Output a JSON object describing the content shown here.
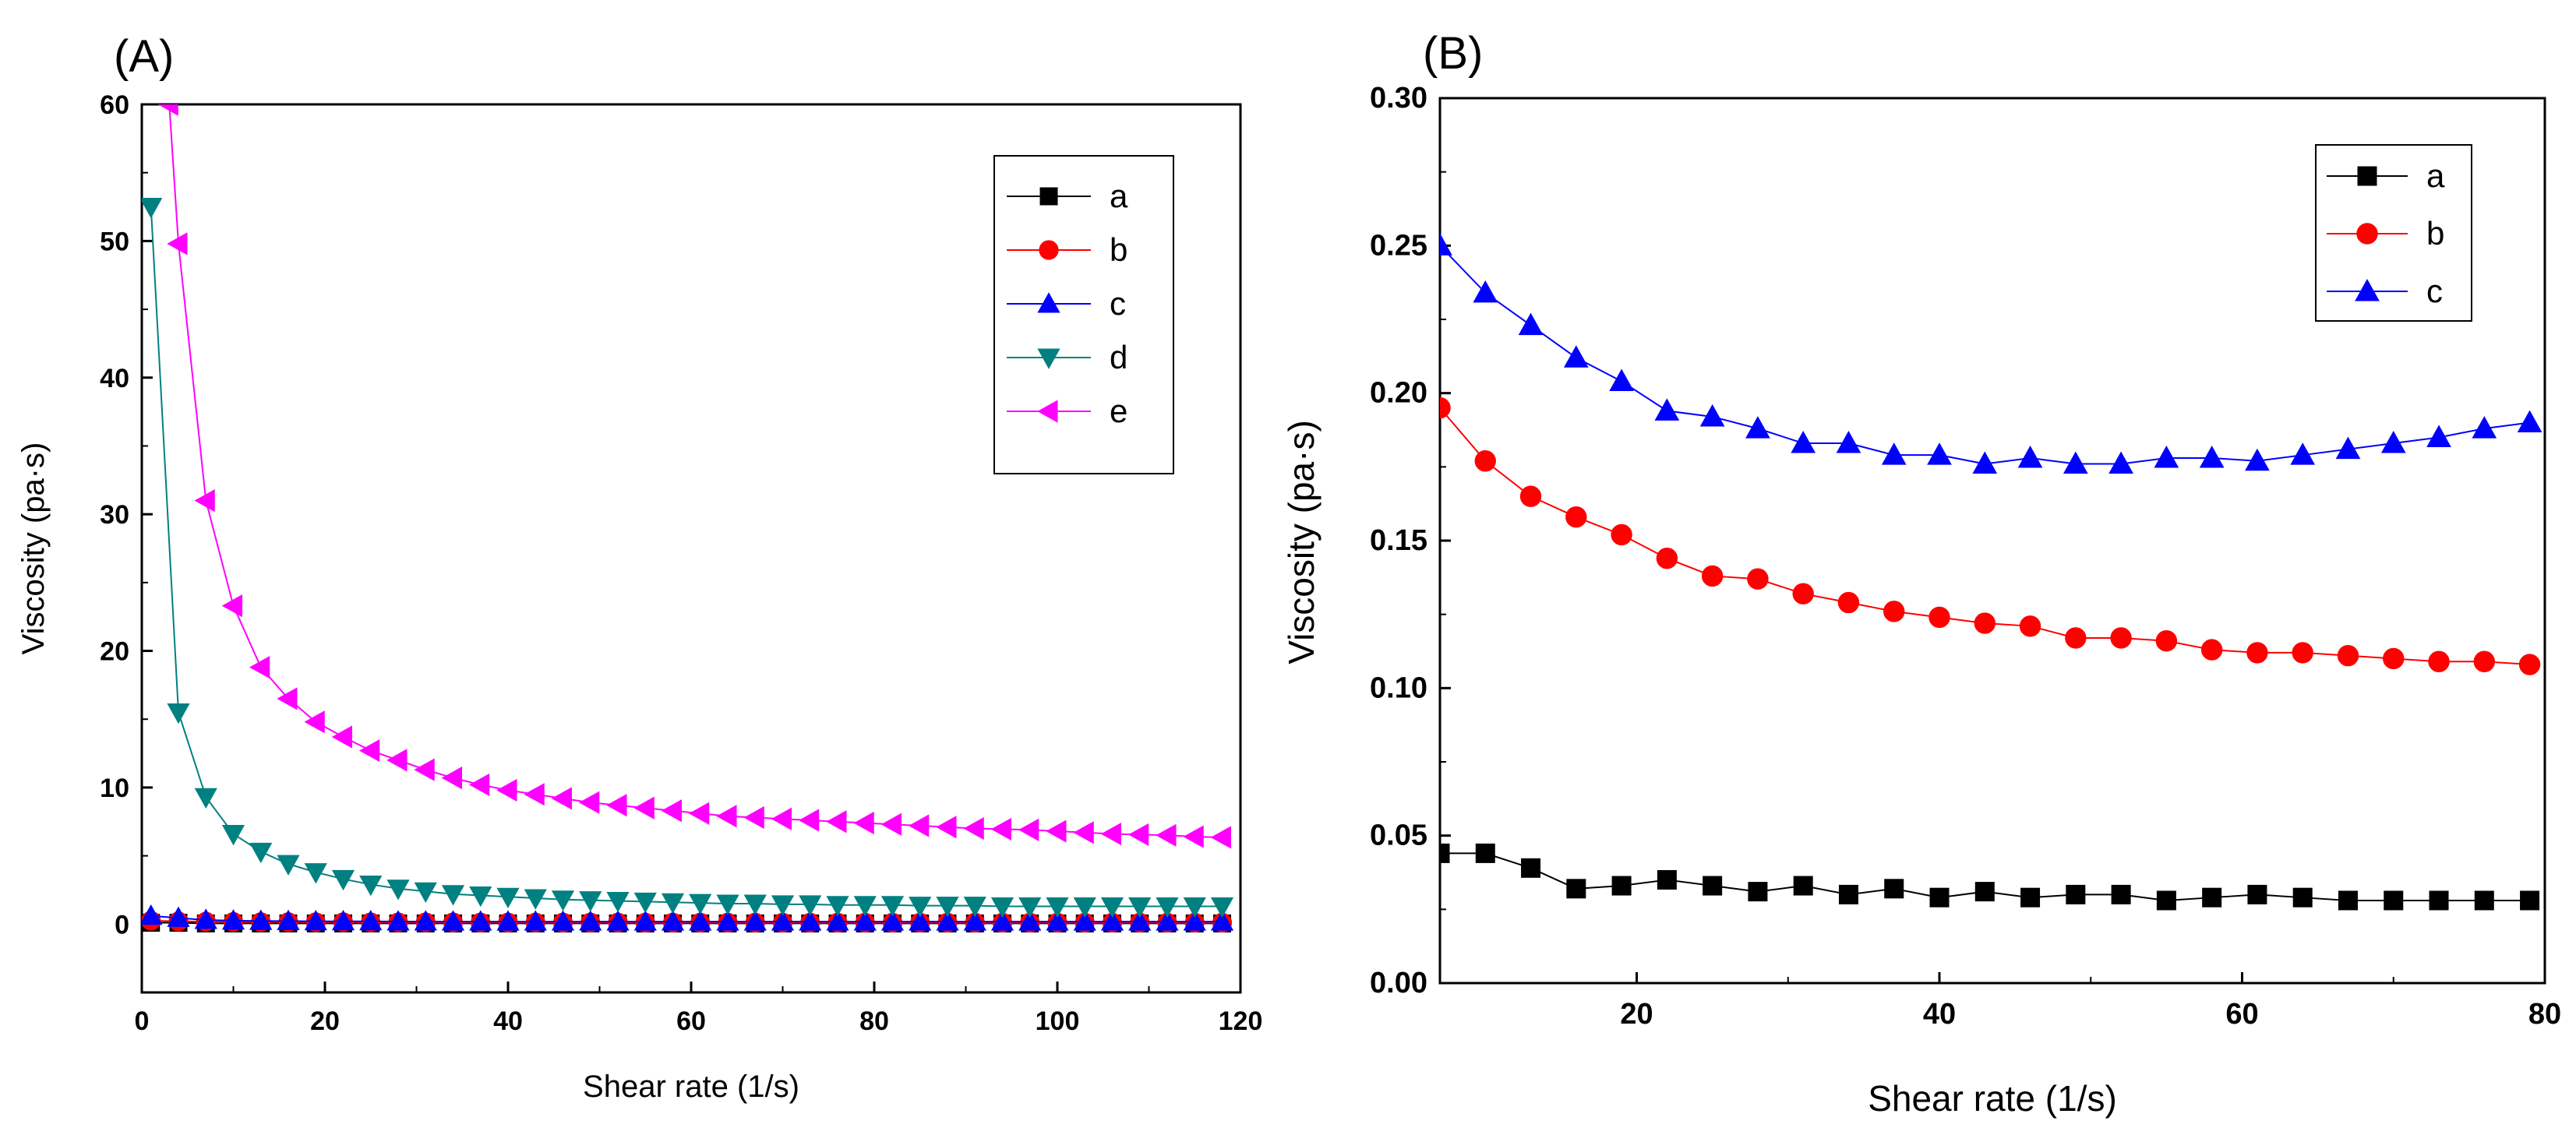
{
  "chart_data": [
    {
      "type": "line",
      "panel_label": "(A)",
      "xlabel": "Shear rate (1/s)",
      "ylabel": "Viscosity (pa·s)",
      "xlim": [
        0,
        120
      ],
      "ylim": [
        -5,
        60
      ],
      "xticks": [
        0,
        20,
        40,
        60,
        80,
        100,
        120
      ],
      "yticks": [
        0,
        10,
        20,
        30,
        40,
        50,
        60
      ],
      "legend_position": "top-right",
      "series": [
        {
          "name": "a",
          "color": "#000000",
          "marker": "square",
          "x": [
            1,
            4,
            7,
            10,
            13,
            16,
            19,
            22,
            25,
            28,
            31,
            34,
            37,
            40,
            43,
            46,
            49,
            52,
            55,
            58,
            61,
            64,
            67,
            70,
            73,
            76,
            79,
            82,
            85,
            88,
            91,
            94,
            97,
            100,
            103,
            106,
            109,
            112,
            115,
            118
          ],
          "y": [
            0.1,
            0.1,
            0.05,
            0.05,
            0.05,
            0.05,
            0.05,
            0.05,
            0.05,
            0.05,
            0.05,
            0.05,
            0.05,
            0.05,
            0.05,
            0.05,
            0.05,
            0.05,
            0.05,
            0.05,
            0.05,
            0.05,
            0.05,
            0.05,
            0.05,
            0.05,
            0.05,
            0.05,
            0.05,
            0.05,
            0.05,
            0.05,
            0.05,
            0.05,
            0.05,
            0.05,
            0.05,
            0.05,
            0.05,
            0.05
          ]
        },
        {
          "name": "b",
          "color": "#ff0000",
          "marker": "circle",
          "x": [
            1,
            4,
            7,
            10,
            13,
            16,
            19,
            22,
            25,
            28,
            31,
            34,
            37,
            40,
            43,
            46,
            49,
            52,
            55,
            58,
            61,
            64,
            67,
            70,
            73,
            76,
            79,
            82,
            85,
            88,
            91,
            94,
            97,
            100,
            103,
            106,
            109,
            112,
            115,
            118
          ],
          "y": [
            0.25,
            0.2,
            0.18,
            0.16,
            0.15,
            0.15,
            0.14,
            0.14,
            0.13,
            0.13,
            0.13,
            0.13,
            0.12,
            0.12,
            0.12,
            0.12,
            0.12,
            0.12,
            0.11,
            0.11,
            0.11,
            0.11,
            0.11,
            0.11,
            0.11,
            0.11,
            0.11,
            0.11,
            0.11,
            0.11,
            0.11,
            0.11,
            0.11,
            0.11,
            0.11,
            0.11,
            0.11,
            0.11,
            0.11,
            0.11
          ]
        },
        {
          "name": "c",
          "color": "#0000ff",
          "marker": "triangle-up",
          "x": [
            1,
            4,
            7,
            10,
            13,
            16,
            19,
            22,
            25,
            28,
            31,
            34,
            37,
            40,
            43,
            46,
            49,
            52,
            55,
            58,
            61,
            64,
            67,
            70,
            73,
            76,
            79,
            82,
            85,
            88,
            91,
            94,
            97,
            100,
            103,
            106,
            109,
            112,
            115,
            118
          ],
          "y": [
            0.6,
            0.45,
            0.3,
            0.25,
            0.23,
            0.22,
            0.2,
            0.2,
            0.2,
            0.19,
            0.19,
            0.18,
            0.18,
            0.18,
            0.18,
            0.18,
            0.18,
            0.18,
            0.18,
            0.18,
            0.18,
            0.18,
            0.18,
            0.18,
            0.18,
            0.18,
            0.18,
            0.18,
            0.18,
            0.18,
            0.18,
            0.18,
            0.18,
            0.18,
            0.18,
            0.18,
            0.18,
            0.18,
            0.18,
            0.18
          ]
        },
        {
          "name": "d",
          "color": "#008080",
          "marker": "triangle-down",
          "x": [
            1,
            4,
            7,
            10,
            13,
            16,
            19,
            22,
            25,
            28,
            31,
            34,
            37,
            40,
            43,
            46,
            49,
            52,
            55,
            58,
            61,
            64,
            67,
            70,
            73,
            76,
            79,
            82,
            85,
            88,
            91,
            94,
            97,
            100,
            103,
            106,
            109,
            112,
            115,
            118
          ],
          "y": [
            52.5,
            15.5,
            9.3,
            6.6,
            5.3,
            4.4,
            3.8,
            3.3,
            2.9,
            2.6,
            2.4,
            2.2,
            2.1,
            2.0,
            1.9,
            1.8,
            1.75,
            1.7,
            1.65,
            1.6,
            1.55,
            1.5,
            1.5,
            1.45,
            1.45,
            1.4,
            1.4,
            1.4,
            1.35,
            1.35,
            1.35,
            1.3,
            1.3,
            1.3,
            1.3,
            1.3,
            1.3,
            1.3,
            1.3,
            1.3
          ]
        },
        {
          "name": "e",
          "color": "#ff00ff",
          "marker": "triangle-left",
          "x": [
            3,
            4,
            7,
            10,
            13,
            16,
            19,
            22,
            25,
            28,
            31,
            34,
            37,
            40,
            43,
            46,
            49,
            52,
            55,
            58,
            61,
            64,
            67,
            70,
            73,
            76,
            79,
            82,
            85,
            88,
            91,
            94,
            97,
            100,
            103,
            106,
            109,
            112,
            115,
            118
          ],
          "y": [
            60,
            49.8,
            31.0,
            23.3,
            18.8,
            16.5,
            14.8,
            13.7,
            12.7,
            12.0,
            11.3,
            10.7,
            10.2,
            9.8,
            9.5,
            9.2,
            8.9,
            8.7,
            8.5,
            8.3,
            8.1,
            7.9,
            7.8,
            7.7,
            7.6,
            7.5,
            7.4,
            7.3,
            7.2,
            7.1,
            7.0,
            6.95,
            6.9,
            6.8,
            6.7,
            6.6,
            6.55,
            6.5,
            6.4,
            6.35
          ]
        }
      ]
    },
    {
      "type": "line",
      "panel_label": "(B)",
      "xlabel": "Shear rate (1/s)",
      "ylabel": "Viscosity (pa·s)",
      "xlim": [
        7,
        80
      ],
      "ylim": [
        0,
        0.3
      ],
      "xticks": [
        20,
        40,
        60,
        80
      ],
      "yticks": [
        "0.00",
        "0.05",
        "0.10",
        "0.15",
        "0.20",
        "0.25",
        "0.30"
      ],
      "legend_position": "top-right",
      "series": [
        {
          "name": "a",
          "color": "#000000",
          "marker": "square",
          "x": [
            7,
            10,
            13,
            16,
            19,
            22,
            25,
            28,
            31,
            34,
            37,
            40,
            43,
            46,
            49,
            52,
            55,
            58,
            61,
            64,
            67,
            70,
            73,
            76,
            79
          ],
          "y": [
            0.044,
            0.044,
            0.039,
            0.032,
            0.033,
            0.035,
            0.033,
            0.031,
            0.033,
            0.03,
            0.032,
            0.029,
            0.031,
            0.029,
            0.03,
            0.03,
            0.028,
            0.029,
            0.03,
            0.029,
            0.028,
            0.028,
            0.028,
            0.028,
            0.028
          ]
        },
        {
          "name": "b",
          "color": "#ff0000",
          "marker": "circle",
          "x": [
            7,
            10,
            13,
            16,
            19,
            22,
            25,
            28,
            31,
            34,
            37,
            40,
            43,
            46,
            49,
            52,
            55,
            58,
            61,
            64,
            67,
            70,
            73,
            76,
            79
          ],
          "y": [
            0.195,
            0.177,
            0.165,
            0.158,
            0.152,
            0.144,
            0.138,
            0.137,
            0.132,
            0.129,
            0.126,
            0.124,
            0.122,
            0.121,
            0.117,
            0.117,
            0.116,
            0.113,
            0.112,
            0.112,
            0.111,
            0.11,
            0.109,
            0.109,
            0.108
          ]
        },
        {
          "name": "c",
          "color": "#0000ff",
          "marker": "triangle-up",
          "x": [
            7,
            10,
            13,
            16,
            19,
            22,
            25,
            28,
            31,
            34,
            37,
            40,
            43,
            46,
            49,
            52,
            55,
            58,
            61,
            64,
            67,
            70,
            73,
            76,
            79
          ],
          "y": [
            0.25,
            0.234,
            0.223,
            0.212,
            0.204,
            0.194,
            0.192,
            0.188,
            0.183,
            0.183,
            0.179,
            0.179,
            0.176,
            0.178,
            0.176,
            0.176,
            0.178,
            0.178,
            0.177,
            0.179,
            0.181,
            0.183,
            0.185,
            0.188,
            0.19
          ]
        }
      ]
    }
  ]
}
